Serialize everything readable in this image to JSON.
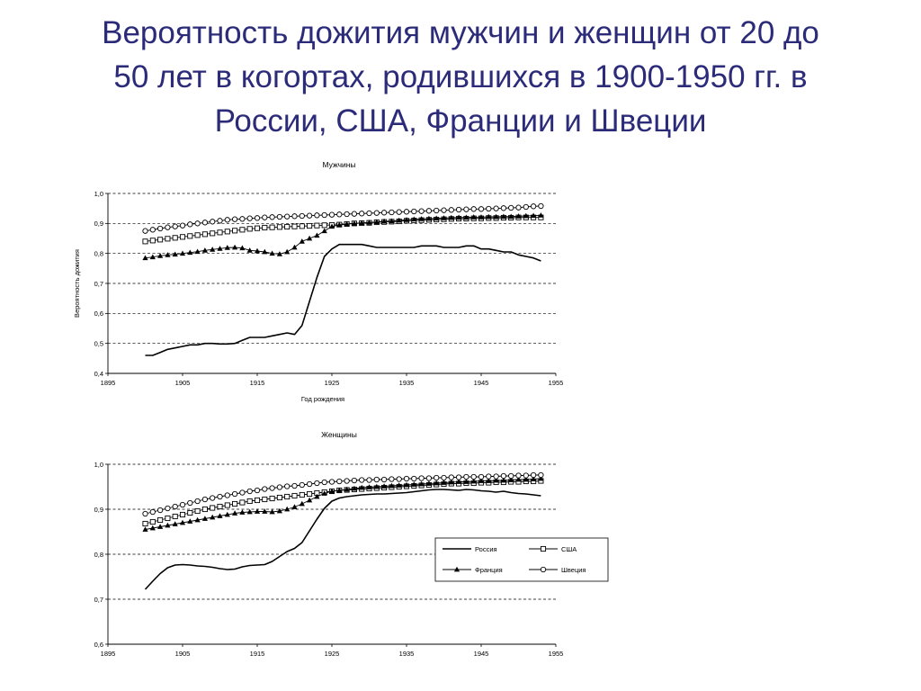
{
  "slide": {
    "title_lines": [
      "Вероятность дожития мужчин и женщин от 20 до",
      "50 лет в когортах, родившихся в 1900-1950 гг. в",
      "России, США, Франции и Швеции"
    ]
  },
  "chart_data": [
    {
      "type": "line",
      "title": "Мужчины",
      "xlabel": "Год рождения",
      "ylabel": "Вероятность дожития",
      "xlim": [
        1895,
        1955
      ],
      "ylim": [
        0.4,
        1.0
      ],
      "x_ticks": [
        "1895",
        "1905",
        "1915",
        "1925",
        "1935",
        "1945",
        "1955"
      ],
      "y_ticks": [
        "0,4",
        "0,5",
        "0,6",
        "0,7",
        "0,8",
        "0,9",
        "1,0"
      ],
      "grid": "horizontal dashed",
      "legend": "none",
      "x": [
        1900,
        1901,
        1902,
        1903,
        1904,
        1905,
        1906,
        1907,
        1908,
        1909,
        1910,
        1911,
        1912,
        1913,
        1914,
        1915,
        1916,
        1917,
        1918,
        1919,
        1920,
        1921,
        1922,
        1923,
        1924,
        1925,
        1926,
        1927,
        1928,
        1929,
        1930,
        1931,
        1932,
        1933,
        1934,
        1935,
        1936,
        1937,
        1938,
        1939,
        1940,
        1941,
        1942,
        1943,
        1944,
        1945,
        1946,
        1947,
        1948,
        1949,
        1950,
        1951,
        1952,
        1953
      ],
      "series": [
        {
          "name": "Россия",
          "marker": "none",
          "values": [
            0.46,
            0.46,
            0.47,
            0.48,
            0.485,
            0.49,
            0.495,
            0.495,
            0.5,
            0.5,
            0.498,
            0.498,
            0.5,
            0.51,
            0.52,
            0.52,
            0.52,
            0.525,
            0.53,
            0.535,
            0.53,
            0.56,
            0.64,
            0.72,
            0.79,
            0.815,
            0.83,
            0.83,
            0.83,
            0.83,
            0.825,
            0.82,
            0.82,
            0.82,
            0.82,
            0.82,
            0.82,
            0.825,
            0.825,
            0.825,
            0.82,
            0.82,
            0.82,
            0.825,
            0.825,
            0.815,
            0.815,
            0.81,
            0.805,
            0.805,
            0.795,
            0.79,
            0.785,
            0.775
          ]
        },
        {
          "name": "США",
          "marker": "square",
          "values": [
            0.84,
            0.843,
            0.846,
            0.849,
            0.852,
            0.855,
            0.858,
            0.861,
            0.864,
            0.867,
            0.87,
            0.873,
            0.876,
            0.879,
            0.882,
            0.884,
            0.886,
            0.887,
            0.888,
            0.889,
            0.89,
            0.891,
            0.892,
            0.893,
            0.894,
            0.895,
            0.896,
            0.898,
            0.9,
            0.901,
            0.902,
            0.904,
            0.905,
            0.906,
            0.907,
            0.909,
            0.91,
            0.911,
            0.912,
            0.913,
            0.914,
            0.915,
            0.916,
            0.916,
            0.917,
            0.917,
            0.918,
            0.918,
            0.919,
            0.919,
            0.92,
            0.92,
            0.92,
            0.92
          ]
        },
        {
          "name": "Франция",
          "marker": "triangle",
          "values": [
            0.785,
            0.788,
            0.792,
            0.795,
            0.797,
            0.8,
            0.803,
            0.806,
            0.81,
            0.813,
            0.816,
            0.819,
            0.82,
            0.818,
            0.81,
            0.808,
            0.805,
            0.8,
            0.798,
            0.805,
            0.82,
            0.84,
            0.85,
            0.86,
            0.875,
            0.89,
            0.895,
            0.898,
            0.9,
            0.902,
            0.903,
            0.905,
            0.907,
            0.908,
            0.91,
            0.912,
            0.914,
            0.915,
            0.916,
            0.917,
            0.918,
            0.919,
            0.92,
            0.92,
            0.921,
            0.921,
            0.922,
            0.922,
            0.923,
            0.923,
            0.924,
            0.925,
            0.926,
            0.927
          ]
        },
        {
          "name": "Швеция",
          "marker": "circle",
          "values": [
            0.875,
            0.879,
            0.883,
            0.887,
            0.89,
            0.893,
            0.897,
            0.9,
            0.903,
            0.906,
            0.909,
            0.912,
            0.914,
            0.915,
            0.917,
            0.918,
            0.92,
            0.921,
            0.922,
            0.923,
            0.924,
            0.925,
            0.926,
            0.927,
            0.928,
            0.929,
            0.93,
            0.931,
            0.932,
            0.933,
            0.934,
            0.935,
            0.936,
            0.937,
            0.938,
            0.939,
            0.94,
            0.941,
            0.942,
            0.943,
            0.944,
            0.945,
            0.946,
            0.947,
            0.948,
            0.948,
            0.949,
            0.95,
            0.951,
            0.952,
            0.953,
            0.955,
            0.957,
            0.958
          ]
        }
      ]
    },
    {
      "type": "line",
      "title": "Женщины",
      "xlabel": "",
      "ylabel": "",
      "xlim": [
        1895,
        1955
      ],
      "ylim": [
        0.6,
        1.0
      ],
      "x_ticks": [
        "1895",
        "1905",
        "1915",
        "1925",
        "1935",
        "1945",
        "1955"
      ],
      "y_ticks": [
        "0,6",
        "0,7",
        "0,8",
        "0,9",
        "1,0"
      ],
      "grid": "horizontal dashed",
      "legend": "right-center",
      "x": [
        1900,
        1901,
        1902,
        1903,
        1904,
        1905,
        1906,
        1907,
        1908,
        1909,
        1910,
        1911,
        1912,
        1913,
        1914,
        1915,
        1916,
        1917,
        1918,
        1919,
        1920,
        1921,
        1922,
        1923,
        1924,
        1925,
        1926,
        1927,
        1928,
        1929,
        1930,
        1931,
        1932,
        1933,
        1934,
        1935,
        1936,
        1937,
        1938,
        1939,
        1940,
        1941,
        1942,
        1943,
        1944,
        1945,
        1946,
        1947,
        1948,
        1949,
        1950,
        1951,
        1952,
        1953
      ],
      "series": [
        {
          "name": "Россия",
          "marker": "none",
          "values": [
            0.722,
            0.74,
            0.757,
            0.77,
            0.776,
            0.777,
            0.776,
            0.774,
            0.773,
            0.771,
            0.768,
            0.766,
            0.767,
            0.772,
            0.775,
            0.776,
            0.777,
            0.784,
            0.795,
            0.806,
            0.813,
            0.826,
            0.852,
            0.878,
            0.902,
            0.918,
            0.925,
            0.928,
            0.93,
            0.932,
            0.933,
            0.934,
            0.934,
            0.935,
            0.936,
            0.937,
            0.939,
            0.941,
            0.943,
            0.944,
            0.944,
            0.943,
            0.942,
            0.944,
            0.943,
            0.941,
            0.94,
            0.938,
            0.94,
            0.937,
            0.935,
            0.934,
            0.932,
            0.93
          ]
        },
        {
          "name": "США",
          "marker": "square",
          "values": [
            0.868,
            0.872,
            0.876,
            0.88,
            0.884,
            0.888,
            0.892,
            0.896,
            0.9,
            0.903,
            0.906,
            0.909,
            0.912,
            0.915,
            0.918,
            0.92,
            0.922,
            0.924,
            0.926,
            0.928,
            0.93,
            0.932,
            0.934,
            0.936,
            0.938,
            0.94,
            0.942,
            0.943,
            0.944,
            0.945,
            0.946,
            0.947,
            0.948,
            0.949,
            0.95,
            0.951,
            0.952,
            0.953,
            0.954,
            0.955,
            0.956,
            0.957,
            0.957,
            0.958,
            0.958,
            0.959,
            0.959,
            0.96,
            0.96,
            0.961,
            0.961,
            0.962,
            0.962,
            0.963
          ]
        },
        {
          "name": "Франция",
          "marker": "triangle",
          "values": [
            0.855,
            0.858,
            0.861,
            0.864,
            0.867,
            0.87,
            0.873,
            0.876,
            0.879,
            0.882,
            0.885,
            0.888,
            0.891,
            0.893,
            0.894,
            0.895,
            0.895,
            0.894,
            0.896,
            0.9,
            0.905,
            0.912,
            0.92,
            0.928,
            0.935,
            0.94,
            0.942,
            0.944,
            0.946,
            0.948,
            0.949,
            0.95,
            0.951,
            0.952,
            0.953,
            0.954,
            0.955,
            0.956,
            0.957,
            0.958,
            0.959,
            0.96,
            0.961,
            0.961,
            0.962,
            0.963,
            0.963,
            0.964,
            0.964,
            0.965,
            0.966,
            0.966,
            0.967,
            0.968
          ]
        },
        {
          "name": "Швеция",
          "marker": "circle",
          "values": [
            0.89,
            0.894,
            0.898,
            0.902,
            0.906,
            0.91,
            0.914,
            0.918,
            0.922,
            0.925,
            0.928,
            0.931,
            0.934,
            0.937,
            0.94,
            0.942,
            0.945,
            0.947,
            0.949,
            0.951,
            0.952,
            0.954,
            0.956,
            0.958,
            0.96,
            0.961,
            0.962,
            0.963,
            0.964,
            0.965,
            0.965,
            0.966,
            0.966,
            0.967,
            0.967,
            0.968,
            0.968,
            0.969,
            0.969,
            0.97,
            0.97,
            0.971,
            0.971,
            0.972,
            0.972,
            0.972,
            0.973,
            0.973,
            0.974,
            0.974,
            0.975,
            0.975,
            0.976,
            0.976
          ]
        }
      ]
    }
  ]
}
